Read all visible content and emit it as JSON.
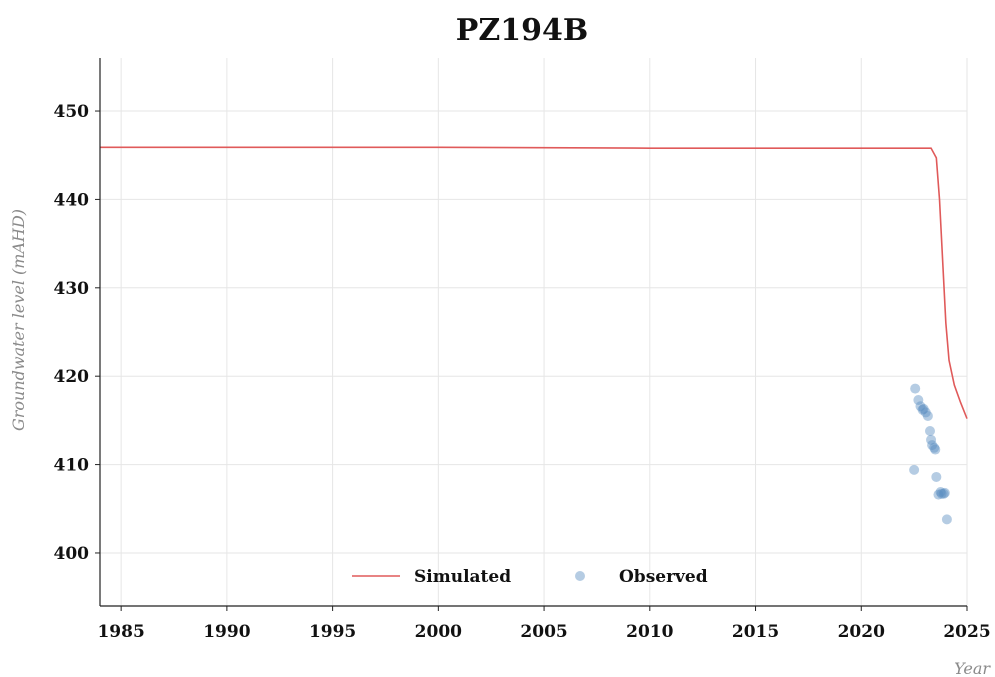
{
  "chart_data": {
    "type": "line",
    "title": "PZ194B",
    "xlabel": "Year",
    "ylabel": "Groundwater level (mAHD)",
    "xlim": [
      1984.0,
      2025.0
    ],
    "ylim": [
      394.0,
      456.0
    ],
    "x_ticks": [
      "1985",
      "1990",
      "1995",
      "2000",
      "2005",
      "2010",
      "2015",
      "2020",
      "2025"
    ],
    "y_ticks": [
      "400",
      "410",
      "420",
      "430",
      "440",
      "450"
    ],
    "grid": true,
    "legend_position": "bottom-center",
    "series": [
      {
        "name": "Simulated",
        "kind": "line",
        "color": "#e05a5a",
        "points": [
          [
            1984.0,
            445.9
          ],
          [
            2000.0,
            445.9
          ],
          [
            2010.0,
            445.8
          ],
          [
            2020.0,
            445.8
          ],
          [
            2023.3,
            445.8
          ],
          [
            2023.55,
            444.7
          ],
          [
            2023.7,
            440.0
          ],
          [
            2023.85,
            433.0
          ],
          [
            2024.0,
            426.0
          ],
          [
            2024.15,
            421.8
          ],
          [
            2024.4,
            419.0
          ],
          [
            2024.7,
            417.0
          ],
          [
            2025.0,
            415.2
          ]
        ]
      },
      {
        "name": "Observed",
        "kind": "scatter",
        "color": "#5b8fc0",
        "points": [
          [
            2022.55,
            418.6
          ],
          [
            2022.5,
            409.4
          ],
          [
            2022.7,
            417.3
          ],
          [
            2022.8,
            416.6
          ],
          [
            2022.9,
            416.2
          ],
          [
            2022.95,
            416.3
          ],
          [
            2023.05,
            415.9
          ],
          [
            2023.15,
            415.5
          ],
          [
            2023.25,
            413.8
          ],
          [
            2023.3,
            412.8
          ],
          [
            2023.35,
            412.2
          ],
          [
            2023.45,
            411.9
          ],
          [
            2023.5,
            411.7
          ],
          [
            2023.55,
            408.6
          ],
          [
            2023.65,
            406.6
          ],
          [
            2023.75,
            406.9
          ],
          [
            2023.8,
            406.7
          ],
          [
            2023.9,
            406.7
          ],
          [
            2023.95,
            406.8
          ],
          [
            2024.05,
            403.8
          ]
        ]
      }
    ]
  }
}
